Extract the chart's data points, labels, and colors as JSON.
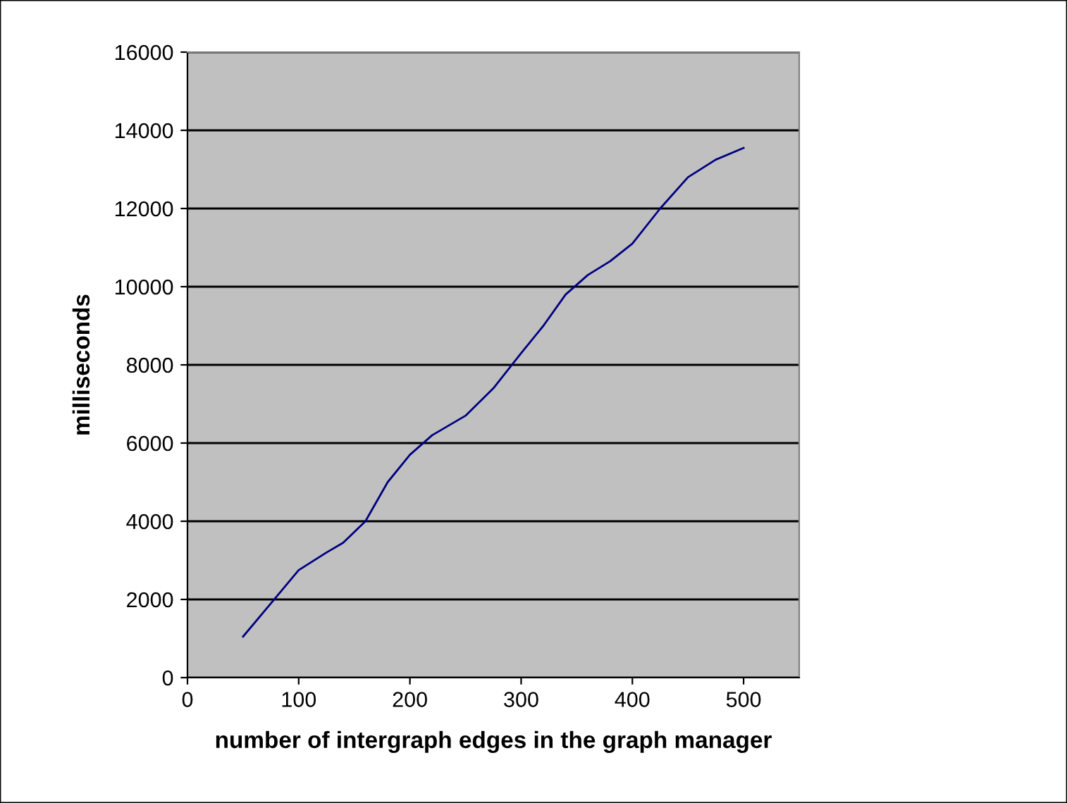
{
  "chart_data": {
    "type": "line",
    "xlabel": "number of intergraph edges in the graph manager",
    "ylabel": "milliseconds",
    "x": [
      50,
      75,
      100,
      125,
      140,
      160,
      180,
      200,
      220,
      250,
      275,
      300,
      320,
      340,
      360,
      380,
      400,
      425,
      450,
      475,
      500
    ],
    "series": [
      {
        "color": "#000080",
        "values": [
          1050,
          1900,
          2750,
          3200,
          3450,
          4000,
          5000,
          5700,
          6200,
          6700,
          7400,
          8300,
          9000,
          9800,
          10300,
          10650,
          11100,
          12000,
          12800,
          13250,
          13550
        ]
      }
    ],
    "xlim": [
      0,
      550
    ],
    "xticks": [
      0,
      100,
      200,
      300,
      400,
      500
    ],
    "ylim": [
      0,
      16000
    ],
    "yticks": [
      0,
      2000,
      4000,
      6000,
      8000,
      10000,
      12000,
      14000,
      16000
    ],
    "grid": "y",
    "marker": "none",
    "line_style": "solid",
    "legend": false
  }
}
